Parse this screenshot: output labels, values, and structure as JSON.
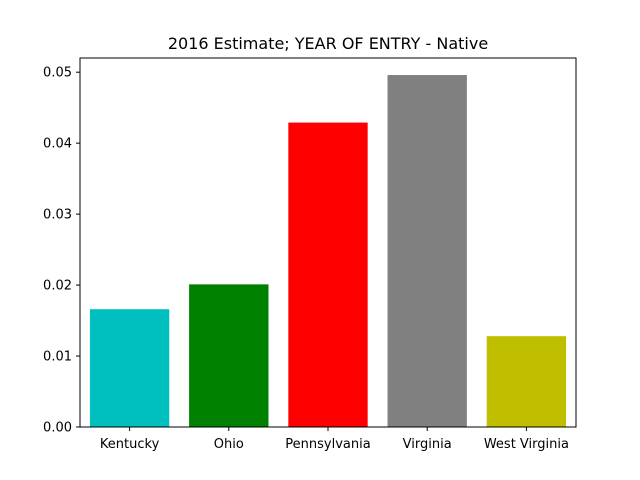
{
  "chart_data": {
    "type": "bar",
    "title": "2016 Estimate; YEAR OF ENTRY - Native",
    "xlabel": "",
    "ylabel": "",
    "categories": [
      "Kentucky",
      "Ohio",
      "Pennsylvania",
      "Virginia",
      "West Virginia"
    ],
    "values": [
      0.0166,
      0.0201,
      0.0429,
      0.0496,
      0.0128
    ],
    "colors": [
      "#00bfbf",
      "#008000",
      "#ff0000",
      "#808080",
      "#bfbf00"
    ],
    "ylim": [
      0,
      0.052
    ],
    "yticks": [
      0.0,
      0.01,
      0.02,
      0.03,
      0.04,
      0.05
    ],
    "ytick_labels": [
      "0.00",
      "0.01",
      "0.02",
      "0.03",
      "0.04",
      "0.05"
    ],
    "grid": false,
    "legend": "none"
  }
}
